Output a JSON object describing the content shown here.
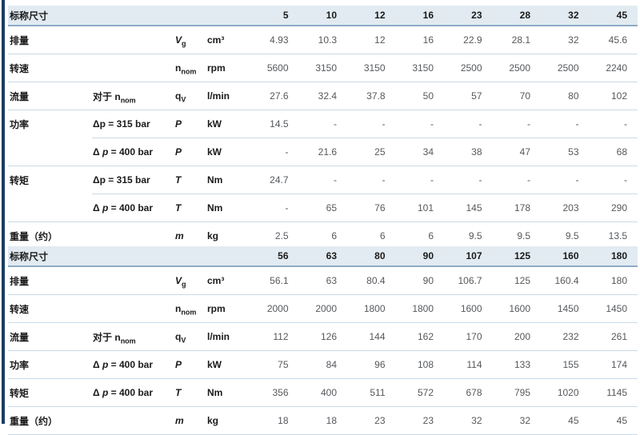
{
  "colors": {
    "left_bar": "#1c3d63",
    "header_band_bg": "#e2ebf1",
    "header_border": "#8fabc7",
    "row_separator": "#c9dae8",
    "label_text": "#1a1a1a",
    "value_text": "#55585c"
  },
  "labels": {
    "nominal_size": "标称尺寸",
    "displacement": "排量",
    "speed": "转速",
    "flow": "流量",
    "power": "功率",
    "torque": "转矩",
    "weight": "重量（约）",
    "flow_cond_pre": "对于 ",
    "flow_cond_var": "n",
    "flow_cond_sub": "nom",
    "dp315_pre": "Δ",
    "dp315_var": "p",
    "dp315_post": " = 315 bar",
    "dp400_pre": "Δ ",
    "dp400_var": "p",
    "dp400_post": " = 400 bar"
  },
  "symbols": {
    "vg_base": "V",
    "vg_sub": "g",
    "n_base": "n",
    "n_sub": "nom",
    "qv_base": "q",
    "qv_sub": "V",
    "power": "P",
    "torque": "T",
    "mass": "m"
  },
  "units": {
    "displacement": "cm³",
    "speed": "rpm",
    "flow": "l/min",
    "power": "kW",
    "torque": "Nm",
    "weight": "kg"
  },
  "table1": {
    "sizes": [
      "5",
      "10",
      "12",
      "16",
      "23",
      "28",
      "32",
      "45"
    ],
    "displacement": [
      "4.93",
      "10.3",
      "12",
      "16",
      "22.9",
      "28.1",
      "32",
      "45.6"
    ],
    "speed": [
      "5600",
      "3150",
      "3150",
      "3150",
      "2500",
      "2500",
      "2500",
      "2240"
    ],
    "flow": [
      "27.6",
      "32.4",
      "37.8",
      "50",
      "57",
      "70",
      "80",
      "102"
    ],
    "power_315": [
      "14.5",
      "-",
      "-",
      "-",
      "-",
      "-",
      "-",
      "-"
    ],
    "power_400": [
      "-",
      "21.6",
      "25",
      "34",
      "38",
      "47",
      "53",
      "68"
    ],
    "torque_315": [
      "24.7",
      "-",
      "-",
      "-",
      "-",
      "-",
      "-",
      "-"
    ],
    "torque_400": [
      "-",
      "65",
      "76",
      "101",
      "145",
      "178",
      "203",
      "290"
    ],
    "weight": [
      "2.5",
      "6",
      "6",
      "6",
      "9.5",
      "9.5",
      "9.5",
      "13.5"
    ]
  },
  "table2": {
    "sizes": [
      "56",
      "63",
      "80",
      "90",
      "107",
      "125",
      "160",
      "180"
    ],
    "displacement": [
      "56.1",
      "63",
      "80.4",
      "90",
      "106.7",
      "125",
      "160.4",
      "180"
    ],
    "speed": [
      "2000",
      "2000",
      "1800",
      "1800",
      "1600",
      "1600",
      "1450",
      "1450"
    ],
    "flow": [
      "112",
      "126",
      "144",
      "162",
      "170",
      "200",
      "232",
      "261"
    ],
    "power_400": [
      "75",
      "84",
      "96",
      "108",
      "114",
      "133",
      "155",
      "174"
    ],
    "torque_400": [
      "356",
      "400",
      "511",
      "572",
      "678",
      "795",
      "1020",
      "1145"
    ],
    "weight": [
      "18",
      "18",
      "23",
      "23",
      "32",
      "32",
      "45",
      "45"
    ]
  }
}
